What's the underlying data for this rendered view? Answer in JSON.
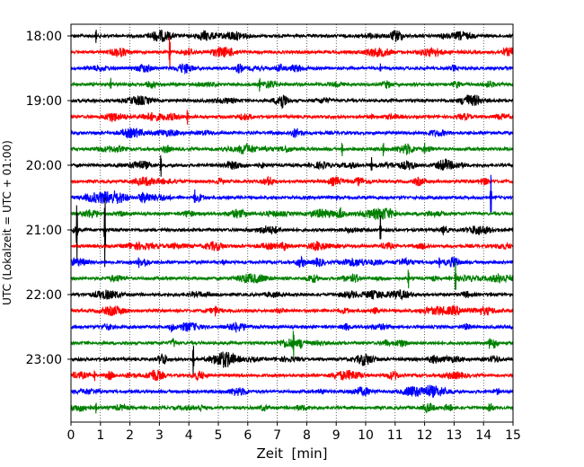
{
  "chart_data": {
    "type": "line",
    "title": "",
    "xlabel": "Zeit  [min]",
    "ylabel": "UTC (Lokalzeit = UTC + 01:00)",
    "xlim": [
      0,
      15
    ],
    "x_ticks": [
      0,
      1,
      2,
      3,
      4,
      5,
      6,
      7,
      8,
      9,
      10,
      11,
      12,
      13,
      14,
      15
    ],
    "x_tick_labels": [
      "0",
      "1",
      "2",
      "3",
      "4",
      "5",
      "6",
      "7",
      "8",
      "9",
      "10",
      "11",
      "12",
      "13",
      "14",
      "15"
    ],
    "grid": "vertical dotted",
    "legend": "none",
    "y_tick_labels": [
      "18:00",
      "19:00",
      "20:00",
      "21:00",
      "22:00",
      "23:00"
    ],
    "row_minutes": 15,
    "rows": [
      "18:00",
      "18:15",
      "18:30",
      "18:45",
      "19:00",
      "19:15",
      "19:30",
      "19:45",
      "20:00",
      "20:15",
      "20:30",
      "20:45",
      "21:00",
      "21:15",
      "21:30",
      "21:45",
      "22:00",
      "22:15",
      "22:30",
      "22:45",
      "23:00",
      "23:15",
      "23:30",
      "23:45"
    ],
    "row_colors": [
      "#000000",
      "#ff0000",
      "#0000ff",
      "#008000"
    ],
    "spikes": [
      {
        "row": "18:00",
        "x": 0.85,
        "amp": 0.5
      },
      {
        "row": "18:15",
        "x": 3.35,
        "amp": 1.2
      },
      {
        "row": "18:30",
        "x": 10.5,
        "amp": 0.3
      },
      {
        "row": "18:45",
        "x": 1.35,
        "amp": 0.4
      },
      {
        "row": "18:45",
        "x": 6.4,
        "amp": 0.5
      },
      {
        "row": "19:15",
        "x": 3.95,
        "amp": 0.55
      },
      {
        "row": "19:45",
        "x": 9.2,
        "amp": 0.5
      },
      {
        "row": "19:45",
        "x": 10.6,
        "amp": 0.5
      },
      {
        "row": "19:45",
        "x": 12.0,
        "amp": 0.4
      },
      {
        "row": "20:00",
        "x": 3.05,
        "amp": 0.8
      },
      {
        "row": "20:00",
        "x": 10.2,
        "amp": 0.5
      },
      {
        "row": "20:30",
        "x": 4.2,
        "amp": 0.5
      },
      {
        "row": "20:30",
        "x": 14.25,
        "amp": 1.4
      },
      {
        "row": "20:45",
        "x": 9.15,
        "amp": 0.4
      },
      {
        "row": "21:00",
        "x": 0.2,
        "amp": 2.0
      },
      {
        "row": "21:00",
        "x": 1.15,
        "amp": 2.6
      },
      {
        "row": "21:00",
        "x": 10.5,
        "amp": 0.9
      },
      {
        "row": "21:30",
        "x": 2.3,
        "amp": 0.4
      },
      {
        "row": "21:30",
        "x": 12.5,
        "amp": 0.4
      },
      {
        "row": "21:45",
        "x": 11.45,
        "amp": 0.7
      },
      {
        "row": "21:45",
        "x": 13.05,
        "amp": 1.1
      },
      {
        "row": "22:15",
        "x": 4.9,
        "amp": 0.4
      },
      {
        "row": "22:30",
        "x": 5.6,
        "amp": 0.4
      },
      {
        "row": "22:45",
        "x": 7.55,
        "amp": 1.0
      },
      {
        "row": "22:45",
        "x": 14.2,
        "amp": 0.4
      },
      {
        "row": "23:00",
        "x": 4.15,
        "amp": 1.1
      },
      {
        "row": "23:15",
        "x": 0.8,
        "amp": 0.4
      },
      {
        "row": "23:45",
        "x": 0.85,
        "amp": 0.4
      }
    ]
  }
}
